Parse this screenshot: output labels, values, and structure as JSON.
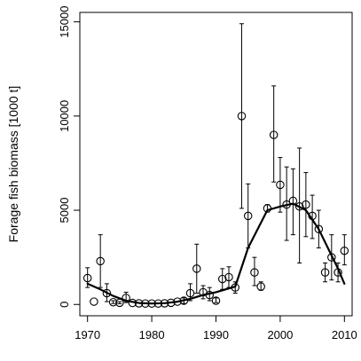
{
  "chart_data": {
    "type": "scatter",
    "title": "",
    "xlabel": "",
    "ylabel": "Forage fish biomass [1000 t]",
    "xlim": [
      1968.8,
      2011.2
    ],
    "ylim": [
      -600,
      15500
    ],
    "x_ticks": [
      1970,
      1980,
      1990,
      2000,
      2010
    ],
    "x_tick_labels": [
      "1970",
      "1980",
      "1990",
      "2000",
      "2010"
    ],
    "y_ticks": [
      0,
      5000,
      10000,
      15000
    ],
    "y_tick_labels": [
      "0",
      "5000",
      "10000",
      "15000"
    ],
    "grid": false,
    "legend": "none",
    "colors": {
      "points": "#000000",
      "line": "#000000",
      "axes": "#000000"
    },
    "series": [
      {
        "kind": "points-with-error-bars",
        "points": [
          {
            "x": 1970,
            "y": 1400,
            "lo": 900,
            "hi": 1950
          },
          {
            "x": 1971,
            "y": 150
          },
          {
            "x": 1972,
            "y": 2300,
            "lo": 900,
            "hi": 3700
          },
          {
            "x": 1973,
            "y": 600,
            "lo": 150,
            "hi": 1100
          },
          {
            "x": 1974,
            "y": 120,
            "lo": 50,
            "hi": 200
          },
          {
            "x": 1975,
            "y": 90,
            "lo": 40,
            "hi": 150
          },
          {
            "x": 1976,
            "y": 350,
            "lo": 100,
            "hi": 650
          },
          {
            "x": 1977,
            "y": 80
          },
          {
            "x": 1978,
            "y": 60
          },
          {
            "x": 1979,
            "y": 50
          },
          {
            "x": 1980,
            "y": 50
          },
          {
            "x": 1981,
            "y": 50
          },
          {
            "x": 1982,
            "y": 60
          },
          {
            "x": 1983,
            "y": 90
          },
          {
            "x": 1984,
            "y": 150
          },
          {
            "x": 1985,
            "y": 200,
            "lo": 50,
            "hi": 350
          },
          {
            "x": 1986,
            "y": 600,
            "lo": 200,
            "hi": 1100
          },
          {
            "x": 1987,
            "y": 1900,
            "lo": 600,
            "hi": 3200
          },
          {
            "x": 1988,
            "y": 650,
            "lo": 300,
            "hi": 1000
          },
          {
            "x": 1989,
            "y": 500,
            "lo": 200,
            "hi": 900
          },
          {
            "x": 1990,
            "y": 200,
            "lo": 100,
            "hi": 350
          },
          {
            "x": 1991,
            "y": 1350,
            "lo": 800,
            "hi": 1900
          },
          {
            "x": 1992,
            "y": 1450,
            "lo": 900,
            "hi": 2000
          },
          {
            "x": 1993,
            "y": 900,
            "lo": 600,
            "hi": 1200
          },
          {
            "x": 1994,
            "y": 10000,
            "lo": 5100,
            "hi": 14900
          },
          {
            "x": 1995,
            "y": 4700,
            "lo": 3000,
            "hi": 6400
          },
          {
            "x": 1996,
            "y": 1700,
            "lo": 1000,
            "hi": 2500
          },
          {
            "x": 1997,
            "y": 950,
            "lo": 750,
            "hi": 1200
          },
          {
            "x": 1998,
            "y": 5100,
            "lo": 4900,
            "hi": 5300
          },
          {
            "x": 1999,
            "y": 9000,
            "lo": 6500,
            "hi": 11600
          },
          {
            "x": 2000,
            "y": 6350,
            "lo": 4900,
            "hi": 7800
          },
          {
            "x": 2001,
            "y": 5300,
            "lo": 3400,
            "hi": 7300
          },
          {
            "x": 2002,
            "y": 5500,
            "lo": 3700,
            "hi": 7200
          },
          {
            "x": 2003,
            "y": 5200,
            "lo": 2200,
            "hi": 8300
          },
          {
            "x": 2004,
            "y": 5300,
            "lo": 3600,
            "hi": 7000
          },
          {
            "x": 2005,
            "y": 4700,
            "lo": 3500,
            "hi": 5800
          },
          {
            "x": 2006,
            "y": 4000,
            "lo": 3000,
            "hi": 5000
          },
          {
            "x": 2007,
            "y": 1700,
            "lo": 1200,
            "hi": 2200
          },
          {
            "x": 2008,
            "y": 2500,
            "lo": 1300,
            "hi": 3700
          },
          {
            "x": 2009,
            "y": 1700,
            "lo": 1200,
            "hi": 2200
          },
          {
            "x": 2010,
            "y": 2850,
            "lo": 2100,
            "hi": 3700
          }
        ]
      },
      {
        "kind": "smooth-line",
        "points": [
          {
            "x": 1970,
            "y": 1100
          },
          {
            "x": 1972,
            "y": 800
          },
          {
            "x": 1974,
            "y": 450
          },
          {
            "x": 1976,
            "y": 200
          },
          {
            "x": 1978,
            "y": 80
          },
          {
            "x": 1980,
            "y": 50
          },
          {
            "x": 1982,
            "y": 70
          },
          {
            "x": 1984,
            "y": 150
          },
          {
            "x": 1986,
            "y": 300
          },
          {
            "x": 1988,
            "y": 500
          },
          {
            "x": 1990,
            "y": 650
          },
          {
            "x": 1992,
            "y": 850
          },
          {
            "x": 1993,
            "y": 950
          },
          {
            "x": 1995,
            "y": 3000
          },
          {
            "x": 1998,
            "y": 5000
          },
          {
            "x": 2000,
            "y": 5200
          },
          {
            "x": 2002,
            "y": 5350
          },
          {
            "x": 2004,
            "y": 5000
          },
          {
            "x": 2006,
            "y": 4000
          },
          {
            "x": 2008,
            "y": 2600
          },
          {
            "x": 2009,
            "y": 1900
          },
          {
            "x": 2010,
            "y": 1100
          }
        ]
      }
    ]
  }
}
